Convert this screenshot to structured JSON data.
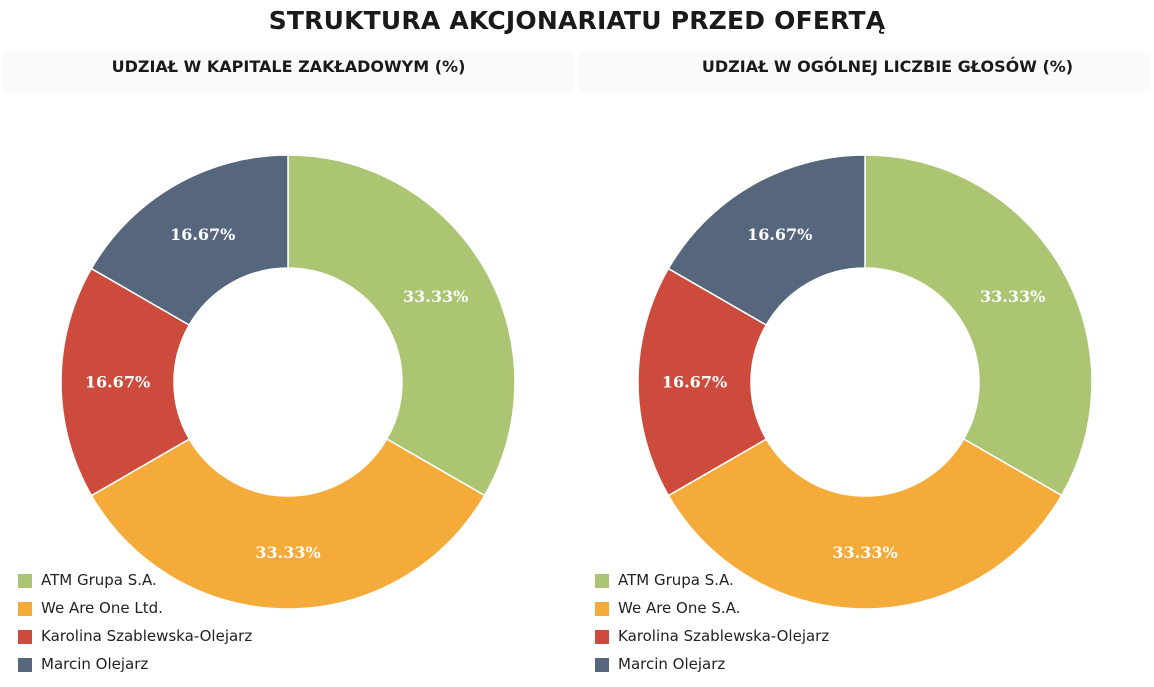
{
  "title": "STRUKTURA AKCJONARIATU PRZED OFERTĄ",
  "colors": {
    "atm": "#abc572",
    "weareone": "#f4ab39",
    "karolina": "#cc4b3c",
    "marcin": "#56677d"
  },
  "chart_data": [
    {
      "type": "pie",
      "subtype": "donut",
      "title": "UDZIAŁ W KAPITALE ZAKŁADOWYM (%)",
      "categories": [
        "ATM Grupa S.A.",
        "We Are One Ltd.",
        "Karolina Szablewska-Olejarz",
        "Marcin Olejarz"
      ],
      "values": [
        33.33,
        33.33,
        16.67,
        16.67
      ],
      "labels": [
        "33.33%",
        "33.33%",
        "16.67%",
        "16.67%"
      ],
      "colors": [
        "#abc572",
        "#f4ab39",
        "#cc4b3c",
        "#56677d"
      ],
      "legend": "bottom-left"
    },
    {
      "type": "pie",
      "subtype": "donut",
      "title": "UDZIAŁ W OGÓLNEJ LICZBIE GŁOSÓW (%)",
      "categories": [
        "ATM Grupa S.A.",
        "We Are One S.A.",
        "Karolina Szablewska-Olejarz",
        "Marcin Olejarz"
      ],
      "values": [
        33.33,
        33.33,
        16.67,
        16.67
      ],
      "labels": [
        "33.33%",
        "33.33%",
        "16.67%",
        "16.67%"
      ],
      "colors": [
        "#abc572",
        "#f4ab39",
        "#cc4b3c",
        "#56677d"
      ],
      "legend": "bottom-left"
    }
  ]
}
